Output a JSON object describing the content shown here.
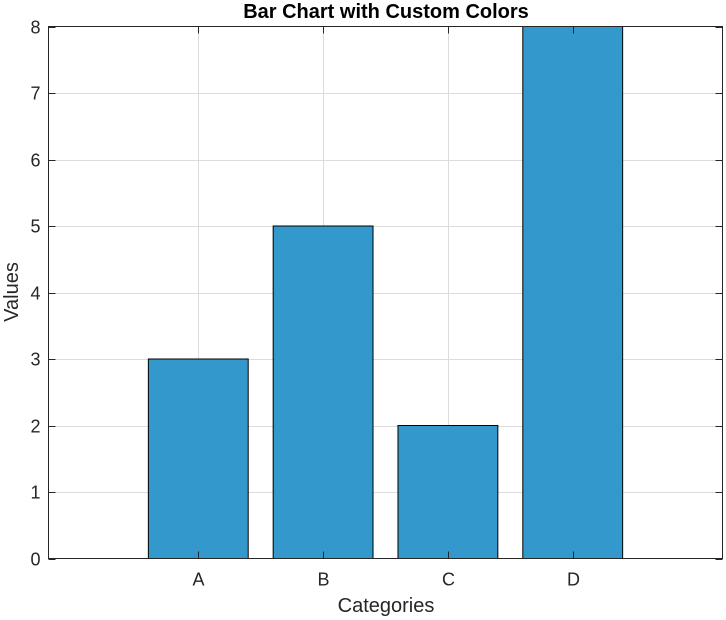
{
  "chart_data": {
    "type": "bar",
    "title": "Bar Chart with Custom Colors",
    "xlabel": "Categories",
    "ylabel": "Values",
    "categories": [
      "A",
      "B",
      "C",
      "D"
    ],
    "values": [
      3,
      5,
      2,
      8
    ],
    "ylim": [
      0,
      8
    ],
    "yticks": [
      0,
      1,
      2,
      3,
      4,
      5,
      6,
      7,
      8
    ],
    "xlim": [
      -0.2,
      5.2
    ],
    "grid": true,
    "bar_color": "#3399cc",
    "bar_edge_color": "#000000"
  }
}
